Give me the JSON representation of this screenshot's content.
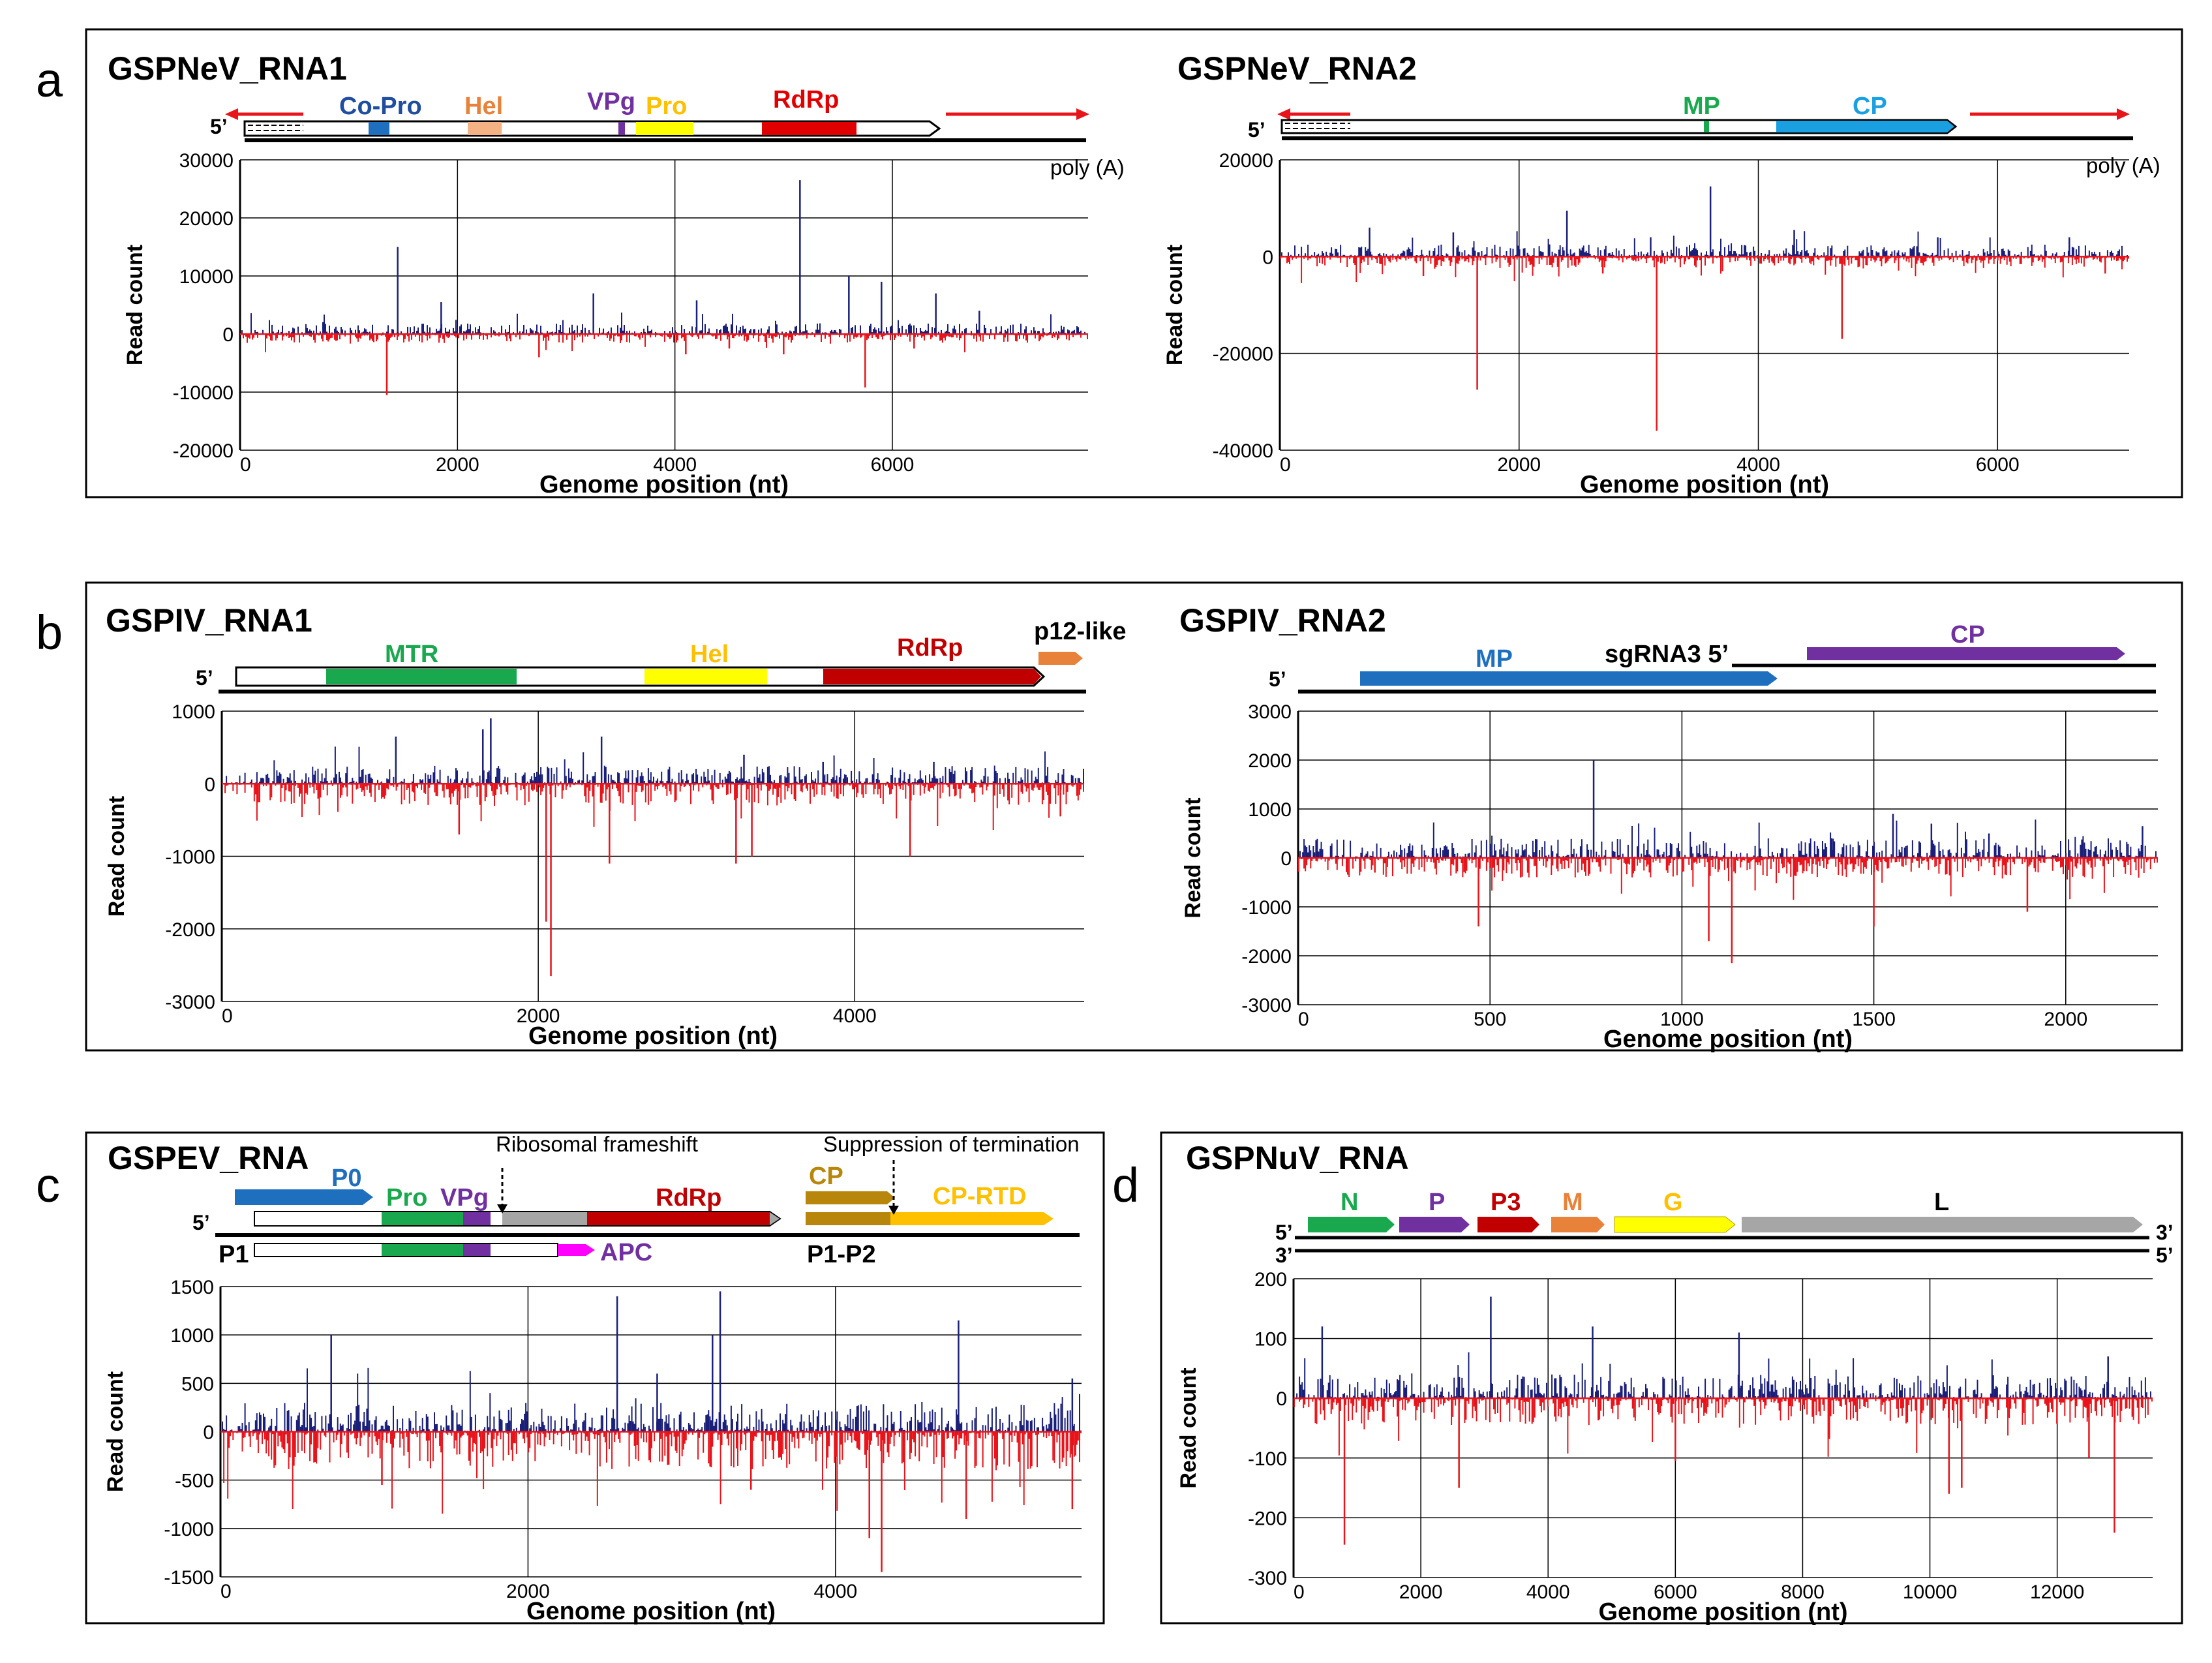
{
  "colors": {
    "positive": "#1a1f7a",
    "negative": "#e8141b",
    "blue": "#1f6fbf",
    "orange": "#e8813a",
    "purple": "#7030a0",
    "yellow": "#ffff00",
    "red": "#e00000",
    "darkred": "#c00000",
    "green": "#1aa84e",
    "cyan": "#1aa0e0",
    "gray": "#a6a6a6",
    "magenta": "#ff00ff",
    "gold": "#b8860b",
    "amber": "#ffc000",
    "dkpurple": "#7030a0",
    "copro": "#1f4e9f"
  },
  "panels": [
    {
      "id": "a",
      "label": "a",
      "title": "GSPNeV_RNA1",
      "prime5": "5’",
      "genes": [
        {
          "name": "Co-Pro",
          "color": "copro"
        },
        {
          "name": "Hel",
          "color": "orange"
        },
        {
          "name": "VPg",
          "color": "purple"
        },
        {
          "name": "Pro",
          "color": "amber"
        },
        {
          "name": "RdRp",
          "color": "red"
        }
      ],
      "extra": [
        "poly (A)"
      ],
      "chart_data": {
        "type": "bar",
        "title": "GSPNeV_RNA1",
        "xlabel": "Genome position (nt)",
        "ylabel": "Read count",
        "xlim": [
          0,
          7800
        ],
        "ylim": [
          -20000,
          30000
        ],
        "xticks": [
          0,
          2000,
          4000,
          6000
        ],
        "yticks": [
          30000,
          20000,
          10000,
          0,
          -10000,
          -20000
        ],
        "yticklabels": [
          "30000",
          "20000",
          "10000",
          "0",
          "-10000",
          "-20000"
        ],
        "peaks_pos": [
          [
            1450,
            15000
          ],
          [
            1850,
            5500
          ],
          [
            3250,
            7000
          ],
          [
            4200,
            5800
          ],
          [
            5150,
            26500
          ],
          [
            5600,
            10000
          ],
          [
            5900,
            9000
          ],
          [
            6400,
            7000
          ],
          [
            6800,
            4000
          ]
        ],
        "peaks_neg": [
          [
            1350,
            -10500
          ],
          [
            2750,
            -4000
          ],
          [
            4100,
            -3500
          ],
          [
            4500,
            -2500
          ],
          [
            5000,
            -3500
          ],
          [
            5750,
            -9200
          ],
          [
            6200,
            -2500
          ]
        ],
        "noise": [
          1800,
          1500
        ],
        "seed": 11
      }
    },
    {
      "id": "a2",
      "label": "",
      "title": "GSPNeV_RNA2",
      "prime5": "5’",
      "genes": [
        {
          "name": "MP",
          "color": "green"
        },
        {
          "name": "CP",
          "color": "cyan"
        }
      ],
      "extra": [
        "poly (A)"
      ],
      "chart_data": {
        "type": "bar",
        "title": "GSPNeV_RNA2",
        "xlabel": "Genome position (nt)",
        "ylabel": "Read count",
        "xlim": [
          0,
          7100
        ],
        "ylim": [
          -40000,
          20000
        ],
        "xticks": [
          0,
          2000,
          4000,
          6000
        ],
        "yticks": [
          20000,
          0,
          -20000,
          -40000
        ],
        "yticklabels": [
          "20000",
          "0",
          "-20000",
          "-40000"
        ],
        "peaks_pos": [
          [
            750,
            6000
          ],
          [
            1450,
            5000
          ],
          [
            2400,
            9500
          ],
          [
            3100,
            4000
          ],
          [
            3600,
            14500
          ],
          [
            4300,
            5500
          ],
          [
            5500,
            4000
          ],
          [
            6600,
            4000
          ]
        ],
        "peaks_neg": [
          [
            1650,
            -27500
          ],
          [
            3150,
            -36000
          ],
          [
            4700,
            -17000
          ],
          [
            1200,
            -4000
          ],
          [
            2700,
            -3500
          ],
          [
            3700,
            -3000
          ],
          [
            6900,
            -3500
          ]
        ],
        "noise": [
          2500,
          2500
        ],
        "seed": 23
      }
    },
    {
      "id": "b",
      "label": "b",
      "title": "GSPIV_RNA1",
      "prime5": "5’",
      "genes": [
        {
          "name": "MTR",
          "color": "green"
        },
        {
          "name": "Hel",
          "color": "amber"
        },
        {
          "name": "RdRp",
          "color": "darkred"
        },
        {
          "name": "p12-like",
          "color": "orange"
        }
      ],
      "chart_data": {
        "type": "bar",
        "title": "GSPIV_RNA1",
        "xlabel": "Genome position (nt)",
        "ylabel": "Read count",
        "xlim": [
          0,
          5450
        ],
        "ylim": [
          -3000,
          1000
        ],
        "xticks": [
          0,
          2000,
          4000
        ],
        "yticks": [
          1000,
          0,
          -1000,
          -2000,
          -3000
        ],
        "yticklabels": [
          "1000",
          "0",
          "-1000",
          "-2000",
          "-3000"
        ],
        "peaks_pos": [
          [
            1100,
            650
          ],
          [
            1650,
            750
          ],
          [
            1700,
            900
          ],
          [
            2400,
            650
          ],
          [
            3300,
            400
          ],
          [
            3800,
            300
          ],
          [
            4500,
            300
          ]
        ],
        "peaks_neg": [
          [
            2080,
            -2650
          ],
          [
            2050,
            -1900
          ],
          [
            1500,
            -700
          ],
          [
            2450,
            -1100
          ],
          [
            3250,
            -1100
          ],
          [
            3350,
            -1000
          ],
          [
            4350,
            -1000
          ],
          [
            5300,
            -450
          ]
        ],
        "noise": [
          250,
          300
        ],
        "seed": 37
      }
    },
    {
      "id": "b2",
      "label": "",
      "title": "GSPIV_RNA2",
      "prime5": "5’",
      "genes": [
        {
          "name": "MP",
          "color": "blue"
        },
        {
          "name": "CP",
          "color": "dkpurple"
        }
      ],
      "sg": "sgRNA3 5’",
      "chart_data": {
        "type": "bar",
        "title": "GSPIV_RNA2",
        "xlabel": "Genome position (nt)",
        "ylabel": "Read count",
        "xlim": [
          0,
          2240
        ],
        "ylim": [
          -3000,
          3000
        ],
        "xticks": [
          0,
          500,
          1000,
          1500,
          2000
        ],
        "yticks": [
          3000,
          2000,
          1000,
          0,
          -1000,
          -2000,
          -3000
        ],
        "yticklabels": [
          "3000",
          "2000",
          "1000",
          "0",
          "-1000",
          "-2000",
          "-3000"
        ],
        "peaks_pos": [
          [
            770,
            2000
          ],
          [
            1550,
            900
          ],
          [
            1650,
            700
          ],
          [
            1800,
            500
          ],
          [
            2200,
            650
          ],
          [
            1390,
            400
          ]
        ],
        "peaks_neg": [
          [
            470,
            -1400
          ],
          [
            1070,
            -1700
          ],
          [
            1130,
            -2150
          ],
          [
            1500,
            -1400
          ],
          [
            1900,
            -1100
          ],
          [
            200,
            -300
          ],
          [
            580,
            -400
          ]
        ],
        "noise": [
          400,
          400
        ],
        "seed": 41
      }
    },
    {
      "id": "c",
      "label": "c",
      "title": "GSPEV_RNA",
      "prime5": "5’",
      "genes": [
        {
          "name": "P0",
          "color": "blue"
        },
        {
          "name": "Pro",
          "color": "green"
        },
        {
          "name": "VPg",
          "color": "purple"
        },
        {
          "name": "RdRp",
          "color": "darkred"
        },
        {
          "name": "CP",
          "color": "gold"
        },
        {
          "name": "CP-RTD",
          "color": "amber"
        },
        {
          "name": "APC",
          "color": "purple"
        }
      ],
      "notes": [
        "Ribosomal frameshift",
        "Suppression of termination",
        "P1",
        "P1-P2"
      ],
      "chart_data": {
        "type": "bar",
        "title": "GSPEV_RNA",
        "xlabel": "Genome position (nt)",
        "ylabel": "Read count",
        "xlim": [
          0,
          5600
        ],
        "ylim": [
          -1500,
          1500
        ],
        "xticks": [
          0,
          2000,
          4000
        ],
        "yticks": [
          1500,
          1000,
          500,
          0,
          -500,
          -1000,
          -1500
        ],
        "yticklabels": [
          "1500",
          "1000",
          "500",
          "0",
          "-500",
          "-1000",
          "-1500"
        ],
        "peaks_pos": [
          [
            720,
            1000
          ],
          [
            2580,
            1400
          ],
          [
            3200,
            1000
          ],
          [
            3250,
            1450
          ],
          [
            2840,
            600
          ],
          [
            4800,
            1150
          ],
          [
            5540,
            550
          ]
        ],
        "peaks_neg": [
          [
            4300,
            -1450
          ],
          [
            4220,
            -1100
          ],
          [
            4850,
            -900
          ],
          [
            5540,
            -800
          ],
          [
            3450,
            -600
          ],
          [
            1050,
            -550
          ]
        ],
        "noise": [
          300,
          400
        ],
        "seed": 53
      }
    },
    {
      "id": "d",
      "label": "d",
      "title": "GSPNuV_RNA",
      "prime5": "5’",
      "prime3": "3’",
      "genes": [
        {
          "name": "N",
          "color": "green"
        },
        {
          "name": "P",
          "color": "purple"
        },
        {
          "name": "P3",
          "color": "darkred"
        },
        {
          "name": "M",
          "color": "orange"
        },
        {
          "name": "G",
          "color": "amber"
        },
        {
          "name": "L",
          "color": "gray"
        }
      ],
      "chart_data": {
        "type": "bar",
        "title": "GSPNuV_RNA",
        "xlabel": "Genome position (nt)",
        "ylabel": "Read count",
        "xlim": [
          0,
          13500
        ],
        "ylim": [
          -300,
          200
        ],
        "xticks": [
          0,
          2000,
          4000,
          6000,
          8000,
          10000,
          12000
        ],
        "yticks": [
          200,
          100,
          0,
          -100,
          -200,
          -300
        ],
        "yticklabels": [
          "200",
          "100",
          "0",
          "-100",
          "-200",
          "-300"
        ],
        "peaks_pos": [
          [
            450,
            120
          ],
          [
            3100,
            170
          ],
          [
            4700,
            120
          ],
          [
            7000,
            110
          ],
          [
            12800,
            70
          ]
        ],
        "peaks_neg": [
          [
            800,
            -245
          ],
          [
            2600,
            -150
          ],
          [
            6000,
            -105
          ],
          [
            10300,
            -160
          ],
          [
            10500,
            -150
          ],
          [
            12500,
            -100
          ],
          [
            12900,
            -225
          ]
        ],
        "noise": [
          40,
          45
        ],
        "seed": 67
      }
    }
  ]
}
